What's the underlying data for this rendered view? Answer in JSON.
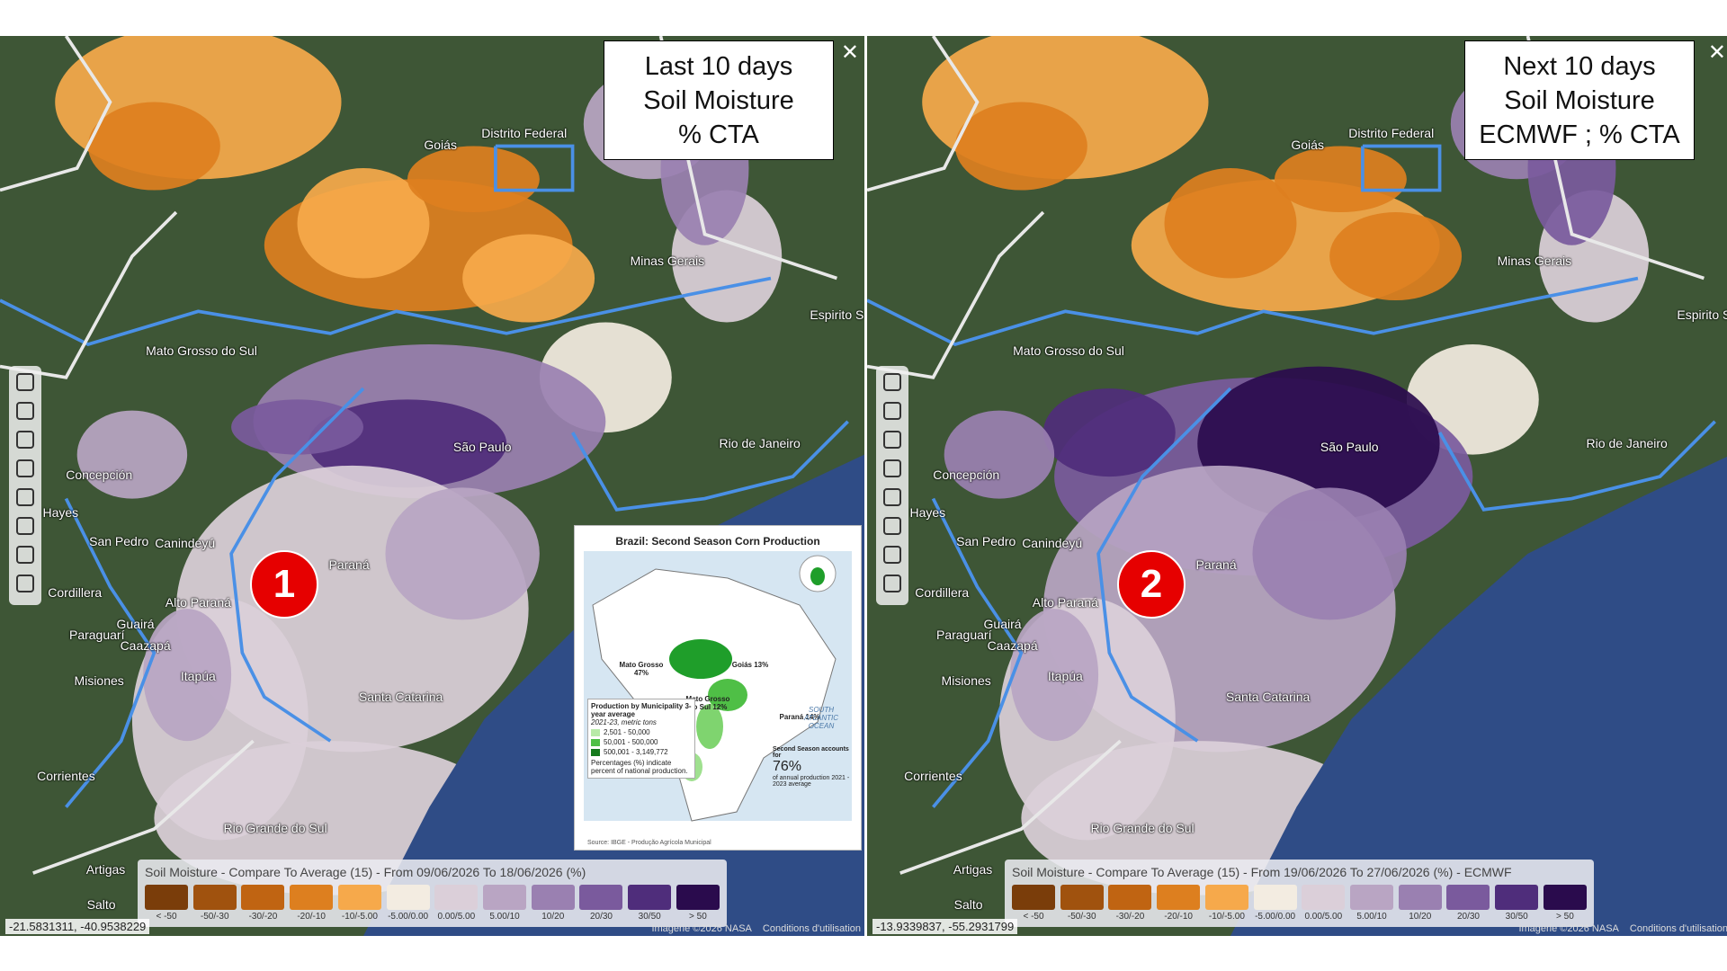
{
  "panels": [
    {
      "title_lines": [
        "Last 10 days",
        "Soil Moisture",
        "% CTA"
      ],
      "badge": "1",
      "legend_title": "Soil Moisture - Compare To Average (15) - From 09/06/2026 To 18/06/2026 (%)",
      "coordinates": "-21.5831311, -40.9538229"
    },
    {
      "title_lines": [
        "Next 10 days",
        "Soil Moisture",
        "ECMWF ; % CTA"
      ],
      "badge": "2",
      "legend_title": "Soil Moisture - Compare To Average (15) - From 19/06/2026 To 27/06/2026 (%) - ECMWF",
      "coordinates": "-13.9339837, -55.2931799"
    }
  ],
  "places": [
    "Goiás",
    "Distrito Federal",
    "Minas Gerais",
    "Espirito S",
    "Mato Grosso do Sul",
    "São Paulo",
    "Rio de Janeiro",
    "Paraná",
    "Santa Catarina",
    "Rio Grande do Sul",
    "Corrientes",
    "Misiones",
    "Concepción",
    "San Pedro",
    "Canindeyú",
    "Cordillera",
    "Paraguarí",
    "Guairá",
    "Caazapá",
    "Itapúa",
    "Alto Paraná",
    "Artigas",
    "Salto",
    "Hayes"
  ],
  "legend_classes": [
    "< -50",
    "-50/-30",
    "-30/-20",
    "-20/-10",
    "-10/-5.00",
    "-5.00/0.00",
    "0.00/5.00",
    "5.00/10",
    "10/20",
    "20/30",
    "30/50",
    "> 50"
  ],
  "attribution": "Imagerie ©2026 NASA",
  "terms": "Conditions d'utilisation",
  "inset": {
    "title": "Brazil: Second Season Corn Production",
    "states": [
      "Mato Grosso 47%",
      "Goiás 13%",
      "Mato Grosso do Sul 12%",
      "Paraná 14%"
    ],
    "ocean": "SOUTH ATLANTIC OCEAN",
    "legend_title": "Production by Municipality 3-year average",
    "legend_sub": "2021-23, metric tons",
    "legend_items": [
      "2,501 - 50,000",
      "50,001 - 500,000",
      "500,001 - 3,149,772"
    ],
    "legend_note": "Percentages (%) indicate percent of national production.",
    "season_lead": "Second Season accounts for",
    "season_share": "76%",
    "season_tail": "of annual production 2021 - 2023 average",
    "source": "Source: IBGE - Produção Agrícola Municipal"
  }
}
